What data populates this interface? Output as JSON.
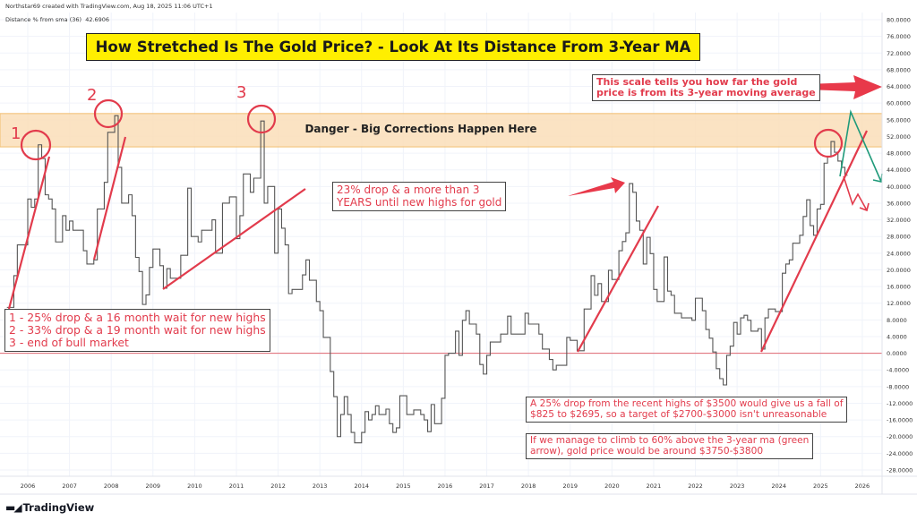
{
  "header": {
    "credit": "Northstar69 created with TradingView.com, Aug 18, 2025 11:06 UTC+1",
    "indicator_label": "Distance % from sma (36)",
    "indicator_value": "42.6906"
  },
  "title": "How Stretched Is The Gold Price? - Look At Its Distance From 3-Year MA",
  "band_label": "Danger - Big Corrections Happen Here",
  "peak_labels": [
    "1",
    "2",
    "3"
  ],
  "notes": {
    "peaks": [
      "1 - 25% drop & a 16 month wait for new highs",
      "2 - 33% drop & a 19 month wait for new highs",
      "3 - end of bull market"
    ],
    "drop_2020": [
      "23% drop & a more than 3",
      "YEARS until new highs for gold"
    ],
    "scale": [
      "This scale tells you how far the gold",
      "price is from its 3-year moving average"
    ],
    "target": [
      "A 25% drop from the recent highs of $3500 would give us a fall of",
      "$825 to $2695, so a target of $2700-$3000 isn't unreasonable"
    ],
    "green_arrow": [
      "If we manage to climb to 60% above the 3-year ma (green",
      "arrow), gold price would be around $3750-$3800"
    ]
  },
  "logo_text": "TradingView",
  "colors": {
    "line": "#555555",
    "annotation": "#e23b4c",
    "band": "#fbe0bd",
    "band_border": "#f0b860",
    "zero_line": "#e06670",
    "green_arrow": "#1f9a7a",
    "title_bg": "#ffef00",
    "grid": "#f0f3fa"
  },
  "chart_data": {
    "type": "line",
    "title": "How Stretched Is The Gold Price? - Look At Its Distance From 3-Year MA",
    "series": [
      {
        "name": "Distance % from sma (36)",
        "step": true,
        "x": [
          "2005-07",
          "2005-09",
          "2005-10",
          "2006-01",
          "2006-02",
          "2006-03",
          "2006-04",
          "2006-05",
          "2006-06",
          "2006-07",
          "2006-08",
          "2006-09",
          "2006-11",
          "2006-12",
          "2007-01",
          "2007-02",
          "2007-05",
          "2007-06",
          "2007-08",
          "2007-09",
          "2007-11",
          "2007-12",
          "2008-02",
          "2008-03",
          "2008-04",
          "2008-06",
          "2008-07",
          "2008-08",
          "2008-09",
          "2008-10",
          "2008-11",
          "2008-12",
          "2009-01",
          "2009-03",
          "2009-04",
          "2009-05",
          "2009-06",
          "2009-09",
          "2009-11",
          "2009-12",
          "2010-02",
          "2010-03",
          "2010-06",
          "2010-07",
          "2010-09",
          "2010-11",
          "2011-01",
          "2011-02",
          "2011-03",
          "2011-05",
          "2011-06",
          "2011-08",
          "2011-09",
          "2011-10",
          "2011-12",
          "2012-01",
          "2012-02",
          "2012-03",
          "2012-04",
          "2012-05",
          "2012-08",
          "2012-09",
          "2012-10",
          "2012-12",
          "2013-01",
          "2013-02",
          "2013-04",
          "2013-05",
          "2013-06",
          "2013-07",
          "2013-08",
          "2013-09",
          "2013-10",
          "2013-11",
          "2014-01",
          "2014-02",
          "2014-03",
          "2014-04",
          "2014-05",
          "2014-06",
          "2014-08",
          "2014-09",
          "2014-10",
          "2014-11",
          "2014-12",
          "2015-02",
          "2015-04",
          "2015-06",
          "2015-07",
          "2015-08",
          "2015-09",
          "2015-10",
          "2015-12",
          "2016-01",
          "2016-02",
          "2016-04",
          "2016-05",
          "2016-06",
          "2016-07",
          "2016-08",
          "2016-10",
          "2016-11",
          "2016-12",
          "2017-01",
          "2017-02",
          "2017-05",
          "2017-07",
          "2017-08",
          "2017-12",
          "2018-01",
          "2018-04",
          "2018-05",
          "2018-07",
          "2018-08",
          "2018-09",
          "2018-12",
          "2019-01",
          "2019-03",
          "2019-05",
          "2019-07",
          "2019-08",
          "2019-09",
          "2019-10",
          "2019-12",
          "2020-01",
          "2020-03",
          "2020-04",
          "2020-05",
          "2020-06",
          "2020-07",
          "2020-08",
          "2020-09",
          "2020-10",
          "2020-11",
          "2020-12",
          "2021-01",
          "2021-02",
          "2021-04",
          "2021-05",
          "2021-06",
          "2021-07",
          "2021-09",
          "2021-12",
          "2022-01",
          "2022-03",
          "2022-04",
          "2022-05",
          "2022-06",
          "2022-07",
          "2022-08",
          "2022-09",
          "2022-10",
          "2022-11",
          "2022-12",
          "2023-01",
          "2023-02",
          "2023-03",
          "2023-04",
          "2023-05",
          "2023-07",
          "2023-08",
          "2023-09",
          "2023-10",
          "2023-12",
          "2024-02",
          "2024-03",
          "2024-04",
          "2024-05",
          "2024-07",
          "2024-08",
          "2024-09",
          "2024-10",
          "2024-11",
          "2024-12",
          "2025-01",
          "2025-02",
          "2025-03",
          "2025-04",
          "2025-05",
          "2025-06",
          "2025-07",
          "2025-08"
        ],
        "values": [
          11,
          18.6,
          26,
          37,
          35,
          37,
          50,
          46.7,
          38,
          37,
          34.6,
          26.7,
          33,
          29.5,
          31.7,
          29.5,
          24.6,
          21.4,
          22.4,
          34.6,
          41,
          53,
          57,
          44.6,
          36,
          38,
          33,
          23,
          19.6,
          11.7,
          14,
          20.6,
          25,
          21,
          15.6,
          20.3,
          18,
          23.5,
          39.6,
          28,
          26.7,
          29.5,
          32,
          24,
          36,
          37.5,
          27.5,
          33,
          43,
          38.6,
          42,
          55.7,
          36,
          40,
          24,
          34.6,
          30,
          26,
          14.3,
          15.3,
          18.8,
          22.4,
          17.5,
          12.4,
          10.2,
          3.8,
          -4.4,
          -10.4,
          -20,
          -14.7,
          -10.4,
          -14.7,
          -19,
          -21.5,
          -19,
          -14,
          -16,
          -14.7,
          -12.6,
          -14.7,
          -13.4,
          -16.9,
          -19,
          -17.9,
          -10.2,
          -14.7,
          -13.6,
          -14.7,
          -16,
          -18.8,
          -12.3,
          -16.9,
          -10.8,
          -0.5,
          0,
          5.3,
          -0.5,
          7.9,
          10.2,
          7,
          4.6,
          -2.7,
          -5,
          -0.5,
          2.7,
          4.6,
          8.9,
          4.6,
          9.6,
          7,
          4.6,
          1,
          -1.5,
          -4,
          -2.9,
          3.8,
          3.1,
          0.6,
          10.6,
          18.6,
          13.9,
          16.7,
          12.4,
          19.9,
          17.7,
          24.6,
          26.8,
          28.9,
          40.7,
          38.6,
          31.7,
          29.5,
          21.4,
          27.8,
          23.9,
          15.3,
          12.4,
          23.1,
          14.9,
          13.9,
          9.6,
          8.5,
          7.9,
          13.2,
          10.2,
          5.7,
          3.6,
          0.3,
          -3.7,
          -6.1,
          -7.6,
          -0.5,
          1.7,
          7.4,
          4.6,
          8.5,
          9.1,
          7.9,
          5.3,
          5.9,
          1,
          8.5,
          10.6,
          10,
          19.2,
          21.4,
          22.4,
          26.4,
          28.3,
          32.8,
          36.8,
          30.6,
          28.3,
          34.6,
          35.7,
          45.6,
          47.1,
          50.8,
          48.2,
          46.1,
          44.6,
          42.7
        ]
      }
    ],
    "danger_zone": [
      49.5,
      57.5
    ],
    "reference_line": 0,
    "ylim": [
      -30,
      82
    ],
    "yticks": [
      "80.0000",
      "76.0000",
      "72.0000",
      "68.0000",
      "64.0000",
      "60.0000",
      "56.0000",
      "52.0000",
      "48.0000",
      "44.0000",
      "40.0000",
      "36.0000",
      "32.0000",
      "28.0000",
      "24.0000",
      "20.0000",
      "16.0000",
      "12.0000",
      "8.0000",
      "4.0000",
      "0.0000",
      "-4.0000",
      "-8.0000",
      "-12.0000",
      "-16.0000",
      "-20.0000",
      "-24.0000",
      "-28.0000"
    ],
    "xticks": [
      "2006",
      "2007",
      "2008",
      "2009",
      "2010",
      "2011",
      "2012",
      "2013",
      "2014",
      "2015",
      "2016",
      "2017",
      "2018",
      "2019",
      "2020",
      "2021",
      "2022",
      "2023",
      "2024",
      "2025",
      "2026"
    ],
    "grid": true,
    "xlabel": "",
    "ylabel": ""
  }
}
